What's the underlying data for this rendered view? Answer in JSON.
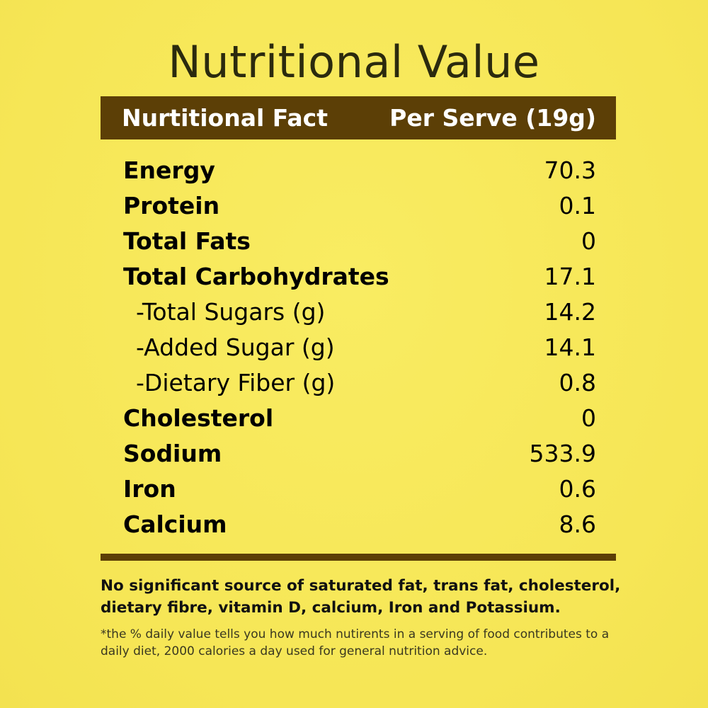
{
  "title": "Nutritional Value",
  "header": {
    "left": "Nurtitional Fact",
    "right": "Per Serve (19g)"
  },
  "rows": [
    {
      "label": "Energy",
      "value": "70.3",
      "sub": false
    },
    {
      "label": "Protein",
      "value": "0.1",
      "sub": false
    },
    {
      "label": "Total Fats",
      "value": "0",
      "sub": false
    },
    {
      "label": "Total Carbohydrates",
      "value": "17.1",
      "sub": false
    },
    {
      "label": "-Total Sugars (g)",
      "value": "14.2",
      "sub": true
    },
    {
      "label": "-Added Sugar (g)",
      "value": "14.1",
      "sub": true
    },
    {
      "label": "-Dietary Fiber (g)",
      "value": "0.8",
      "sub": true
    },
    {
      "label": "Cholesterol",
      "value": "0",
      "sub": false
    },
    {
      "label": "Sodium",
      "value": "533.9",
      "sub": false
    },
    {
      "label": "Iron",
      "value": "0.6",
      "sub": false
    },
    {
      "label": "Calcium",
      "value": "8.6",
      "sub": false
    }
  ],
  "note": "No significant source of saturated fat, trans fat, cholesterol, dietary fibre, vitamin D, calcium, Iron and Potassium.",
  "footnote": "*the % daily value tells you how much nutirents in a serving of food contributes to a daily diet, 2000 calories a day used for general nutrition advice.",
  "colors": {
    "background": "#f7e85a",
    "header_bar": "#5c3f06",
    "title_text": "#2b2a0e"
  }
}
